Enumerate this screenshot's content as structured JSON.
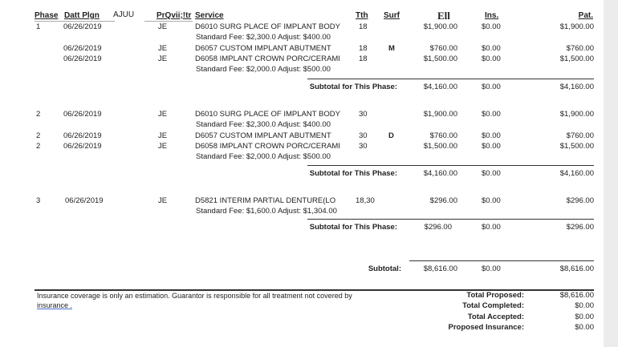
{
  "headers": {
    "phase": "Phase",
    "date": "Datt Plgn",
    "extra": "AJUU",
    "provider": "PrQvii;!tr",
    "service": "Service",
    "tooth": "Tth",
    "surf": "Surf",
    "fee": "Ell",
    "ins": "Ins.",
    "pat": "Pat."
  },
  "phases": [
    {
      "subtotal_label": "Subtotal for This Phase:",
      "subtotal": {
        "fee": "$4,160.00",
        "ins": "$0.00",
        "pat": "$4,160.00"
      },
      "rows": [
        {
          "phase": "1",
          "date": "06/26/2019",
          "provider": "JE",
          "service": "D6010 SURG PLACE OF IMPLANT BODY",
          "tooth": "18",
          "surf": "",
          "fee": "$1,900.00",
          "ins": "$0.00",
          "pat": "$1,900.00",
          "note": "Standard Fee: $2,300.0 Adjust: $400.00"
        },
        {
          "phase": "",
          "date": "06/26/2019",
          "provider": "JE",
          "service": "D6057 CUSTOM IMPLANT ABUTMENT",
          "tooth": "18",
          "surf": "M",
          "fee": "$760.00",
          "ins": "$0.00",
          "pat": "$760.00",
          "note": ""
        },
        {
          "phase": "",
          "date": "06/26/2019",
          "provider": "JE",
          "service": "D6058 IMPLANT CROWN PORC/CERAMI",
          "tooth": "18",
          "surf": "",
          "fee": "$1,500.00",
          "ins": "$0.00",
          "pat": "$1,500.00",
          "note": "Standard Fee: $2,000.0 Adjust: $500.00"
        }
      ]
    },
    {
      "subtotal_label": "Subtotal for This Phase:",
      "subtotal": {
        "fee": "$4,160.00",
        "ins": "$0.00",
        "pat": "$4,160.00"
      },
      "rows": [
        {
          "phase": "2",
          "date": "06/26/2019",
          "provider": "JE",
          "service": "D6010 SURG PLACE OF IMPLANT BODY",
          "tooth": "30",
          "surf": "",
          "fee": "$1,900.00",
          "ins": "$0.00",
          "pat": "$1,900.00",
          "note": "Standard Fee: $2,300.0 Adjust: $400.00"
        },
        {
          "phase": "2",
          "date": "06/26/2019",
          "provider": "JE",
          "service": "D6057 CUSTOM IMPLANT ABUTMENT",
          "tooth": "30",
          "surf": "D",
          "fee": "$760.00",
          "ins": "$0.00",
          "pat": "$760.00",
          "note": ""
        },
        {
          "phase": "2",
          "date": "06/26/2019",
          "provider": "JE",
          "service": "D6058 IMPLANT CROWN PORC/CERAMI",
          "tooth": "30",
          "surf": "",
          "fee": "$1,500.00",
          "ins": "$0.00",
          "pat": "$1,500.00",
          "note": "Standard Fee: $2,000.0 Adjust: $500.00"
        }
      ]
    },
    {
      "subtotal_label": "Subtotal for This Phase:",
      "subtotal": {
        "fee": "$296.00",
        "ins": "$0.00",
        "pat": "$296.00"
      },
      "rows": [
        {
          "phase": "3",
          "date": "06/26/2019",
          "provider": "JE",
          "service": "D5821  INTERIM PARTIAL DENTURE(LO",
          "tooth": "18,30",
          "surf": "",
          "fee": "$296.00",
          "ins": "$0.00",
          "pat": "$296.00",
          "note": "Standard Fee: $1,600.0 Adjust: $1,304.00"
        }
      ]
    }
  ],
  "grand": {
    "label": "Subtotal:",
    "fee": "$8,616.00",
    "ins": "$0.00",
    "pat": "$8,616.00"
  },
  "footer": {
    "disclaimer": "Insurance coverage is only an estimation. Guarantor is responsible for all treatment not covered by",
    "disclaimer2": "insurance .",
    "totals": [
      {
        "label": "Total Proposed:",
        "value": "$8,616.00"
      },
      {
        "label": "Total Completed:",
        "value": "$0.00"
      },
      {
        "label": "Total Accepted:",
        "value": "$0.00"
      },
      {
        "label": "Proposed Insurance:",
        "value": "$0.00"
      }
    ]
  }
}
